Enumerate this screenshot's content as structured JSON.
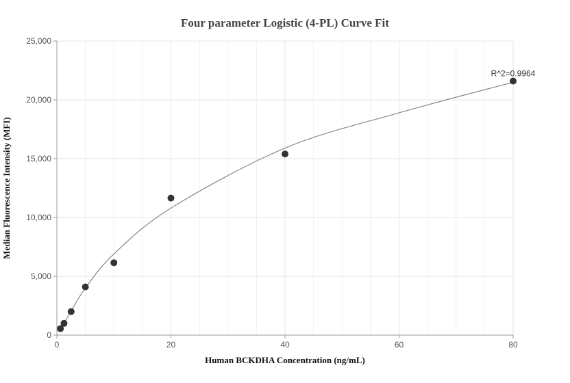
{
  "chart_data": {
    "type": "scatter",
    "title": "Four parameter Logistic (4-PL) Curve Fit",
    "xlabel": "Human BCKDHA Concentration (ng/mL)",
    "ylabel": "Median Fluorescence Intensity (MFI)",
    "xlim": [
      0,
      80
    ],
    "ylim": [
      0,
      25000
    ],
    "xticks": [
      0,
      20,
      40,
      60,
      80
    ],
    "yticks": [
      0,
      5000,
      10000,
      15000,
      20000,
      25000
    ],
    "xtick_labels": [
      "0",
      "20",
      "40",
      "60",
      "80"
    ],
    "ytick_labels": [
      "0",
      "5,000",
      "10,000",
      "15,000",
      "20,000",
      "25,000"
    ],
    "grid": true,
    "points": {
      "x": [
        0.625,
        1.25,
        2.5,
        5,
        10,
        20,
        40,
        80
      ],
      "y": [
        550,
        1000,
        2000,
        4100,
        6150,
        11650,
        15400,
        21600
      ]
    },
    "fit_curve": {
      "x": [
        0.625,
        1.25,
        2.5,
        5,
        10,
        20,
        40,
        60,
        80
      ],
      "y": [
        500,
        1000,
        2050,
        4000,
        6900,
        10800,
        15900,
        18900,
        21500
      ]
    },
    "annotation": "R^2=0.9964",
    "colors": {
      "points": "#333333",
      "curve": "#888888",
      "grid": "#e6e6e6",
      "axis": "#999999"
    }
  }
}
